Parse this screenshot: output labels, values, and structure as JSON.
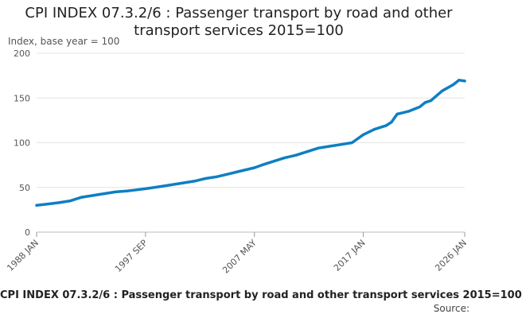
{
  "chart_data": {
    "type": "line",
    "title": "CPI INDEX 07.3.2/6 : Passenger transport by road and other transport services 2015=100",
    "ylabel": "Index, base year = 100",
    "xlabel": "",
    "ylim": [
      0,
      200
    ],
    "yticks": [
      0,
      50,
      100,
      150,
      200
    ],
    "xticks": [
      "1988 JAN",
      "1997 SEP",
      "2007 MAY",
      "2017 JAN",
      "2026 JAN"
    ],
    "grid": true,
    "line_color": "#0f7fc2",
    "series": [
      {
        "points": [
          [
            "1988 JAN",
            30
          ],
          [
            "1989 JAN",
            31.5
          ],
          [
            "1990 JAN",
            33
          ],
          [
            "1991 JAN",
            35
          ],
          [
            "1992 JAN",
            39
          ],
          [
            "1993 JAN",
            41
          ],
          [
            "1994 JAN",
            43
          ],
          [
            "1995 JAN",
            45
          ],
          [
            "1996 JAN",
            46
          ],
          [
            "1997 SEP",
            48.5
          ],
          [
            "1999 JAN",
            51
          ],
          [
            "2000 JAN",
            53
          ],
          [
            "2001 JAN",
            55
          ],
          [
            "2002 JAN",
            57
          ],
          [
            "2003 JAN",
            60
          ],
          [
            "2004 JAN",
            62
          ],
          [
            "2005 JAN",
            65
          ],
          [
            "2006 JAN",
            68
          ],
          [
            "2007 MAY",
            72
          ],
          [
            "2008 JAN",
            75
          ],
          [
            "2009 JAN",
            79
          ],
          [
            "2010 JAN",
            83
          ],
          [
            "2011 JAN",
            86
          ],
          [
            "2012 JAN",
            90
          ],
          [
            "2013 JAN",
            94
          ],
          [
            "2014 JAN",
            96
          ],
          [
            "2015 JAN",
            98
          ],
          [
            "2016 JAN",
            100
          ],
          [
            "2017 JAN",
            109
          ],
          [
            "2018 JAN",
            115
          ],
          [
            "2019 JAN",
            119
          ],
          [
            "2019 JUL",
            123
          ],
          [
            "2020 JAN",
            132
          ],
          [
            "2021 JAN",
            135
          ],
          [
            "2022 JAN",
            140
          ],
          [
            "2022 JUL",
            145
          ],
          [
            "2023 JAN",
            147
          ],
          [
            "2024 JAN",
            158
          ],
          [
            "2025 JAN",
            165
          ],
          [
            "2025 JUL",
            170
          ],
          [
            "2026 JAN",
            169
          ]
        ]
      }
    ]
  },
  "footer": {
    "title": "CPI INDEX 07.3.2/6 : Passenger transport by road and other transport services 2015=100",
    "source": "Source:"
  }
}
